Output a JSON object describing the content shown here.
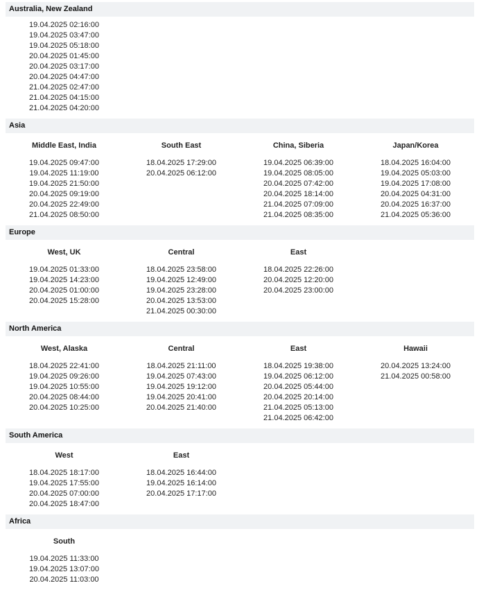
{
  "sections": [
    {
      "title": "Australia, New Zealand",
      "columns": [
        {
          "head": "",
          "entries": [
            "19.04.2025 02:16:00",
            "19.04.2025 03:47:00",
            "19.04.2025 05:18:00",
            "20.04.2025 01:45:00",
            "20.04.2025 03:17:00",
            "20.04.2025 04:47:00",
            "21.04.2025 02:47:00",
            "21.04.2025 04:15:00",
            "21.04.2025 04:20:00"
          ]
        }
      ]
    },
    {
      "title": "Asia",
      "columns": [
        {
          "head": "Middle East, India",
          "entries": [
            "19.04.2025 09:47:00",
            "19.04.2025 11:19:00",
            "19.04.2025 21:50:00",
            "20.04.2025 09:19:00",
            "20.04.2025 22:49:00",
            "21.04.2025 08:50:00"
          ]
        },
        {
          "head": "South East",
          "entries": [
            "18.04.2025 17:29:00",
            "20.04.2025 06:12:00"
          ]
        },
        {
          "head": "China, Siberia",
          "entries": [
            "19.04.2025 06:39:00",
            "19.04.2025 08:05:00",
            "20.04.2025 07:42:00",
            "20.04.2025 18:14:00",
            "21.04.2025 07:09:00",
            "21.04.2025 08:35:00"
          ]
        },
        {
          "head": "Japan/Korea",
          "entries": [
            "18.04.2025 16:04:00",
            "19.04.2025 05:03:00",
            "19.04.2025 17:08:00",
            "20.04.2025 04:31:00",
            "20.04.2025 16:37:00",
            "21.04.2025 05:36:00"
          ]
        }
      ]
    },
    {
      "title": "Europe",
      "columns": [
        {
          "head": "West, UK",
          "entries": [
            "19.04.2025 01:33:00",
            "19.04.2025 14:23:00",
            "20.04.2025 01:00:00",
            "20.04.2025 15:28:00"
          ]
        },
        {
          "head": "Central",
          "entries": [
            "18.04.2025 23:58:00",
            "19.04.2025 12:49:00",
            "19.04.2025 23:28:00",
            "20.04.2025 13:53:00",
            "21.04.2025 00:30:00"
          ]
        },
        {
          "head": "East",
          "entries": [
            "18.04.2025 22:26:00",
            "20.04.2025 12:20:00",
            "20.04.2025 23:00:00"
          ]
        }
      ]
    },
    {
      "title": "North America",
      "columns": [
        {
          "head": "West, Alaska",
          "entries": [
            "18.04.2025 22:41:00",
            "19.04.2025 09:26:00",
            "19.04.2025 10:55:00",
            "20.04.2025 08:44:00",
            "20.04.2025 10:25:00"
          ]
        },
        {
          "head": "Central",
          "entries": [
            "18.04.2025 21:11:00",
            "19.04.2025 07:43:00",
            "19.04.2025 19:12:00",
            "19.04.2025 20:41:00",
            "20.04.2025 21:40:00"
          ]
        },
        {
          "head": "East",
          "entries": [
            "18.04.2025 19:38:00",
            "19.04.2025 06:12:00",
            "20.04.2025 05:44:00",
            "20.04.2025 20:14:00",
            "21.04.2025 05:13:00",
            "21.04.2025 06:42:00"
          ]
        },
        {
          "head": "Hawaii",
          "entries": [
            "20.04.2025 13:24:00",
            "21.04.2025 00:58:00"
          ]
        }
      ]
    },
    {
      "title": "South America",
      "columns": [
        {
          "head": "West",
          "entries": [
            "18.04.2025 18:17:00",
            "19.04.2025 17:55:00",
            "20.04.2025 07:00:00",
            "20.04.2025 18:47:00"
          ]
        },
        {
          "head": "East",
          "entries": [
            "18.04.2025 16:44:00",
            "19.04.2025 16:14:00",
            "20.04.2025 17:17:00"
          ]
        }
      ]
    },
    {
      "title": "Africa",
      "columns": [
        {
          "head": "South",
          "entries": [
            "19.04.2025 11:33:00",
            "19.04.2025 13:07:00",
            "20.04.2025 11:03:00"
          ]
        }
      ]
    }
  ]
}
